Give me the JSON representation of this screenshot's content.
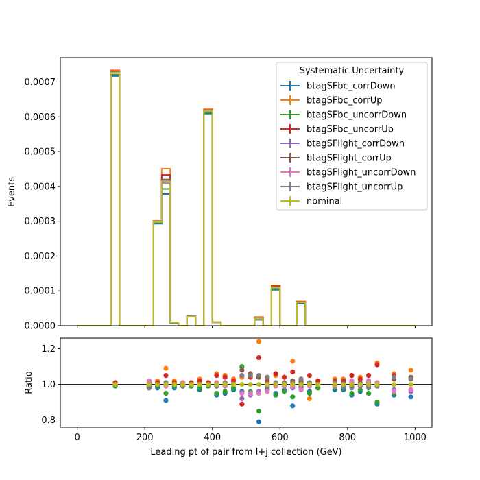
{
  "chart_data": [
    {
      "type": "line",
      "subtype": "step-histogram",
      "title": "",
      "xlabel": "",
      "ylabel": "Events",
      "xlim": [
        -50,
        1050
      ],
      "ylim": [
        0,
        0.00077
      ],
      "y_ticks": [
        0,
        0.0001,
        0.0002,
        0.0003,
        0.0004,
        0.0005,
        0.0006,
        0.0007
      ],
      "y_tick_labels": [
        "0.0000",
        "0.0001",
        "0.0002",
        "0.0003",
        "0.0004",
        "0.0005",
        "0.0006",
        "0.0007"
      ],
      "x_ticks": [
        0,
        200,
        400,
        600,
        800,
        1000
      ],
      "bin_edges": [
        0,
        25,
        50,
        75,
        100,
        125,
        150,
        175,
        200,
        225,
        250,
        275,
        300,
        325,
        350,
        375,
        400,
        425,
        450,
        475,
        500,
        525,
        550,
        575,
        600,
        625,
        650,
        675,
        700,
        725,
        750,
        775,
        800,
        825,
        850,
        875,
        900,
        925,
        950,
        975,
        1000
      ],
      "series": [
        {
          "name": "btagSFbc_corrDown",
          "color": "#1f77b4",
          "values": [
            0,
            0,
            0,
            0,
            0.000717,
            0,
            0,
            0,
            0,
            0.000293,
            0.000378,
            8e-06,
            0,
            2.6e-05,
            0,
            0.000609,
            9e-06,
            0,
            0,
            0,
            0,
            1.7e-05,
            0,
            0.000103,
            0,
            0,
            6.5e-05,
            0,
            0,
            0,
            0,
            0,
            0,
            0,
            0,
            0,
            0,
            0,
            0,
            0
          ]
        },
        {
          "name": "btagSFbc_corrUp",
          "color": "#ff7f0e",
          "values": [
            0,
            0,
            0,
            0,
            0.000734,
            0,
            0,
            0,
            0,
            0.000301,
            0.000451,
            9e-06,
            0,
            2.7e-05,
            0,
            0.000622,
            1e-05,
            0,
            0,
            0,
            0,
            2.5e-05,
            0,
            0.000116,
            0,
            0,
            7e-05,
            0,
            0,
            0,
            0,
            0,
            0,
            0,
            0,
            0,
            0,
            0,
            0,
            0
          ]
        },
        {
          "name": "btagSFbc_uncorrDown",
          "color": "#2ca02c",
          "values": [
            0,
            0,
            0,
            0,
            0.000721,
            0,
            0,
            0,
            0,
            0.000296,
            0.000393,
            8e-06,
            0,
            2.6e-05,
            0,
            0.000612,
            9e-06,
            0,
            0,
            0,
            0,
            1.9e-05,
            0,
            0.000106,
            0,
            0,
            6.6e-05,
            0,
            0,
            0,
            0,
            0,
            0,
            0,
            0,
            0,
            0,
            0,
            0,
            0
          ]
        },
        {
          "name": "btagSFbc_uncorrUp",
          "color": "#d62728",
          "values": [
            0,
            0,
            0,
            0,
            0.000731,
            0,
            0,
            0,
            0,
            0.0003,
            0.000433,
            9e-06,
            0,
            2.7e-05,
            0,
            0.000619,
            1e-05,
            0,
            0,
            0,
            0,
            2.3e-05,
            0,
            0.000114,
            0,
            0,
            6.9e-05,
            0,
            0,
            0,
            0,
            0,
            0,
            0,
            0,
            0,
            0,
            0,
            0,
            0
          ]
        },
        {
          "name": "btagSFlight_corrDown",
          "color": "#9467bd",
          "values": [
            0,
            0,
            0,
            0,
            0.000727,
            0,
            0,
            0,
            0,
            0.000298,
            0.00041,
            9e-06,
            0,
            2.6e-05,
            0,
            0.000616,
            9e-06,
            0,
            0,
            0,
            0,
            2e-05,
            0,
            0.00011,
            0,
            0,
            6.7e-05,
            0,
            0,
            0,
            0,
            0,
            0,
            0,
            0,
            0,
            0,
            0,
            0,
            0
          ]
        },
        {
          "name": "btagSFlight_corrUp",
          "color": "#8c564b",
          "values": [
            0,
            0,
            0,
            0,
            0.000729,
            0,
            0,
            0,
            0,
            0.000299,
            0.00042,
            9e-06,
            0,
            2.7e-05,
            0,
            0.000617,
            1e-05,
            0,
            0,
            0,
            0,
            2.2e-05,
            0,
            0.000111,
            0,
            0,
            6.8e-05,
            0,
            0,
            0,
            0,
            0,
            0,
            0,
            0,
            0,
            0,
            0,
            0,
            0
          ]
        },
        {
          "name": "btagSFlight_uncorrDown",
          "color": "#e377c2",
          "values": [
            0,
            0,
            0,
            0,
            0.000726,
            0,
            0,
            0,
            0,
            0.000298,
            0.000412,
            9e-06,
            0,
            2.6e-05,
            0,
            0.000617,
            9e-06,
            0,
            0,
            0,
            0,
            2e-05,
            0,
            0.000109,
            0,
            0,
            6.7e-05,
            0,
            0,
            0,
            0,
            0,
            0,
            0,
            0,
            0,
            0,
            0,
            0,
            0
          ]
        },
        {
          "name": "btagSFlight_uncorrUp",
          "color": "#7f7f7f",
          "values": [
            0,
            0,
            0,
            0,
            0.000728,
            0,
            0,
            0,
            0,
            0.000299,
            0.000418,
            9e-06,
            0,
            2.7e-05,
            0,
            0.000618,
            1e-05,
            0,
            0,
            0,
            0,
            2.2e-05,
            0,
            0.000111,
            0,
            0,
            6.8e-05,
            0,
            0,
            0,
            0,
            0,
            0,
            0,
            0,
            0,
            0,
            0,
            0,
            0
          ]
        },
        {
          "name": "nominal",
          "color": "#bcbd22",
          "values": [
            0,
            0,
            0,
            0,
            0.000727,
            0,
            0,
            0,
            0,
            0.000298,
            0.000414,
            9e-06,
            0,
            2.6e-05,
            0,
            0.000617,
            1e-05,
            0,
            0,
            0,
            0,
            2.1e-05,
            0,
            0.00011,
            0,
            0,
            6.8e-05,
            0,
            0,
            0,
            0,
            0,
            0,
            0,
            0,
            0,
            0,
            0,
            0,
            0
          ]
        }
      ],
      "legend": {
        "title": "Systematic Uncertainty",
        "placement": "top-right"
      }
    },
    {
      "type": "scatter",
      "title": "",
      "xlabel": "Leading pt of pair from l+j collection (GeV)",
      "ylabel": "Ratio",
      "xlim": [
        -50,
        1050
      ],
      "ylim": [
        0.76,
        1.26
      ],
      "y_ticks": [
        0.8,
        1.0,
        1.2
      ],
      "y_tick_labels": [
        "0.8",
        "1.0",
        "1.2"
      ],
      "x_ticks": [
        0,
        200,
        400,
        600,
        800,
        1000
      ],
      "x_tick_labels": [
        "0",
        "200",
        "400",
        "600",
        "800",
        "1000"
      ],
      "reference_line": 1.0,
      "x": [
        112.5,
        212.5,
        237.5,
        262.5,
        287.5,
        312.5,
        337.5,
        362.5,
        387.5,
        412.5,
        437.5,
        462.5,
        487.5,
        512.5,
        537.5,
        562.5,
        587.5,
        612.5,
        637.5,
        662.5,
        687.5,
        712.5,
        762.5,
        787.5,
        812.5,
        837.5,
        862.5,
        887.5,
        937.5,
        987.5
      ],
      "series": [
        {
          "name": "btagSFbc_corrDown",
          "color": "#1f77b4",
          "values": [
            0.99,
            0.98,
            0.98,
            0.91,
            0.98,
            0.99,
            0.99,
            0.97,
            0.99,
            0.94,
            0.95,
            0.97,
            0.96,
            0.95,
            0.79,
            0.97,
            0.95,
            0.97,
            0.88,
            0.97,
            0.96,
            0.98,
            0.97,
            0.97,
            0.94,
            0.96,
            0.95,
            0.89,
            0.94,
            0.93
          ]
        },
        {
          "name": "btagSFbc_corrUp",
          "color": "#ff7f0e",
          "values": [
            1.01,
            1.02,
            1.02,
            1.09,
            1.02,
            1.01,
            1.01,
            1.03,
            1.01,
            1.06,
            1.05,
            1.03,
            1.04,
            1.06,
            1.24,
            1.04,
            1.05,
            1.04,
            1.13,
            1.03,
            0.92,
            1.02,
            1.03,
            1.03,
            1.05,
            1.04,
            1.05,
            1.12,
            1.06,
            1.08
          ]
        },
        {
          "name": "btagSFbc_uncorrDown",
          "color": "#2ca02c",
          "values": [
            0.99,
            0.99,
            0.99,
            0.95,
            0.99,
            0.99,
            0.99,
            0.98,
            0.99,
            0.95,
            0.96,
            0.98,
            1.1,
            0.96,
            0.85,
            0.98,
            0.94,
            0.96,
            0.93,
            0.98,
            0.95,
            0.98,
            0.98,
            0.98,
            0.95,
            0.97,
            0.95,
            0.9,
            0.95,
            0.97
          ]
        },
        {
          "name": "btagSFbc_uncorrUp",
          "color": "#d62728",
          "values": [
            1.01,
            1.01,
            1.01,
            1.05,
            1.01,
            1.01,
            1.01,
            1.02,
            1.01,
            1.05,
            1.04,
            1.02,
            0.89,
            1.04,
            1.15,
            1.02,
            1.06,
            1.04,
            1.07,
            1.02,
            1.05,
            1.02,
            1.02,
            1.02,
            1.05,
            1.03,
            1.05,
            1.11,
            1.05,
            1.03
          ]
        },
        {
          "name": "btagSFlight_corrDown",
          "color": "#9467bd",
          "values": [
            1.0,
            1.0,
            1.0,
            0.99,
            1.0,
            1.0,
            1.0,
            1.0,
            1.0,
            0.99,
            0.99,
            1.0,
            0.92,
            0.94,
            0.96,
            0.99,
            1.0,
            0.99,
            0.98,
            0.99,
            0.99,
            1.0,
            0.99,
            0.99,
            0.99,
            0.99,
            0.99,
            0.99,
            0.97,
            0.96
          ]
        },
        {
          "name": "btagSFlight_corrUp",
          "color": "#8c564b",
          "values": [
            1.0,
            1.0,
            1.0,
            1.01,
            1.0,
            1.0,
            1.0,
            1.0,
            1.0,
            1.01,
            1.01,
            1.0,
            1.08,
            1.06,
            1.04,
            1.01,
            1.0,
            1.01,
            1.02,
            1.01,
            1.01,
            1.0,
            1.01,
            1.01,
            1.01,
            1.01,
            1.01,
            1.01,
            1.03,
            1.04
          ]
        },
        {
          "name": "btagSFlight_uncorrDown",
          "color": "#e377c2",
          "values": [
            1.0,
            1.02,
            1.0,
            0.99,
            1.0,
            1.01,
            1.0,
            1.0,
            1.0,
            1.01,
            0.99,
            1.0,
            0.95,
            0.95,
            0.95,
            0.96,
            0.99,
            0.99,
            0.99,
            0.97,
            0.99,
            1.0,
            0.99,
            1.0,
            1.02,
            1.0,
            1.02,
            1.01,
            0.96,
            0.97
          ]
        },
        {
          "name": "btagSFlight_uncorrUp",
          "color": "#7f7f7f",
          "values": [
            1.0,
            0.98,
            1.0,
            1.01,
            1.0,
            0.99,
            1.0,
            1.0,
            1.0,
            0.99,
            1.01,
            1.0,
            1.05,
            1.05,
            1.05,
            1.04,
            1.01,
            1.01,
            1.01,
            1.03,
            1.01,
            1.0,
            1.01,
            1.0,
            0.98,
            1.0,
            0.98,
            0.99,
            1.04,
            1.03
          ]
        },
        {
          "name": "nominal",
          "color": "#bcbd22",
          "values": [
            1.0,
            1.0,
            1.0,
            1.0,
            1.0,
            1.0,
            1.0,
            1.0,
            1.0,
            1.0,
            1.0,
            1.0,
            1.0,
            1.0,
            1.0,
            1.0,
            1.0,
            1.0,
            1.0,
            1.0,
            1.0,
            1.0,
            1.0,
            1.0,
            1.0,
            1.0,
            1.0,
            1.0,
            1.0,
            1.0
          ]
        }
      ]
    }
  ]
}
